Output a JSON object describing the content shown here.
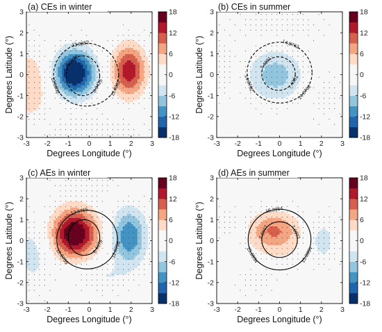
{
  "colormap": [
    "#08306b",
    "#2166ac",
    "#4393c3",
    "#92c5de",
    "#d1e5f0",
    "#f7f7f7",
    "#fddbc7",
    "#f4a582",
    "#d6604d",
    "#b2182b",
    "#67001f"
  ],
  "chart_data": [
    {
      "type": "heatmap",
      "title": "(a) CEs in winter",
      "xlabel": "Degrees Longitude (°)",
      "ylabel": "Degrees Latitude (°)",
      "xlim": [
        -3,
        3
      ],
      "ylim": [
        -3,
        3
      ],
      "xticks": [
        "-3",
        "-2",
        "-1",
        "0",
        "1",
        "2",
        "3"
      ],
      "yticks": [
        "3",
        "2",
        "1",
        "0",
        "-1",
        "-2",
        "-3"
      ],
      "colorbar": {
        "min": -18,
        "max": 18,
        "ticks": [
          "18",
          "12",
          "6",
          "0",
          "-6",
          "-12",
          "-18"
        ]
      },
      "field": {
        "blobs": [
          {
            "x": -0.7,
            "y": 0.1,
            "amp": -20,
            "sx": 0.65,
            "sy": 0.75
          },
          {
            "x": 1.9,
            "y": 0.2,
            "amp": 14,
            "sx": 0.55,
            "sy": 0.85
          },
          {
            "x": -2.8,
            "y": -0.5,
            "amp": 5,
            "sx": 0.7,
            "sy": 1.3
          },
          {
            "x": 0.0,
            "y": -2.8,
            "amp": -3,
            "sx": 1.8,
            "sy": 0.5
          }
        ]
      },
      "contours": [
        {
          "value": "13.8852",
          "label_angles": [
            100,
            200,
            335
          ],
          "cx": -0.15,
          "cy": 0.0,
          "rx": 1.55,
          "ry": 1.5,
          "style": "dashed"
        },
        {
          "value": "6.9426",
          "label_angles": [
            130,
            330
          ],
          "cx": -0.3,
          "cy": -0.05,
          "rx": 0.8,
          "ry": 0.95,
          "style": "dashed"
        }
      ]
    },
    {
      "type": "heatmap",
      "title": "(b) CEs in summer",
      "xlabel": "Degrees Longitude (°)",
      "ylabel": "Degrees Latitude (°)",
      "xlim": [
        -3,
        3
      ],
      "ylim": [
        -3,
        3
      ],
      "xticks": [
        "-3",
        "-2",
        "-1",
        "0",
        "1",
        "2",
        "3"
      ],
      "yticks": [
        "3",
        "2",
        "1",
        "0",
        "-1",
        "-2",
        "-3"
      ],
      "colorbar": {
        "min": -18,
        "max": 18,
        "ticks": [
          "18",
          "12",
          "6",
          "0",
          "-6",
          "-12",
          "-18"
        ]
      },
      "field": {
        "blobs": [
          {
            "x": -0.2,
            "y": 0.0,
            "amp": -7.5,
            "sx": 0.9,
            "sy": 0.85
          },
          {
            "x": 0.0,
            "y": 2.4,
            "amp": 2.5,
            "sx": 1.4,
            "sy": 0.6
          },
          {
            "x": -2.7,
            "y": 0.3,
            "amp": 2.2,
            "sx": 0.5,
            "sy": 1.0
          },
          {
            "x": 2.2,
            "y": -1.0,
            "amp": 2.0,
            "sx": 0.6,
            "sy": 0.9
          }
        ]
      },
      "contours": [
        {
          "value": "14.8762",
          "label_angles": [
            70,
            200,
            320
          ],
          "cx": 0.0,
          "cy": 0.1,
          "rx": 1.55,
          "ry": 1.45,
          "style": "dashed"
        },
        {
          "value": "7.4381",
          "label_angles": [
            140,
            330
          ],
          "cx": -0.05,
          "cy": 0.05,
          "rx": 0.8,
          "ry": 0.8,
          "style": "dashed"
        }
      ]
    },
    {
      "type": "heatmap",
      "title": "(c) AEs in winter",
      "xlabel": "Degrees Longitude (°)",
      "ylabel": "Degrees Latitude (°)",
      "xlim": [
        -3,
        3
      ],
      "ylim": [
        -3,
        3
      ],
      "xticks": [
        "-3",
        "-2",
        "-1",
        "0",
        "1",
        "2",
        "3"
      ],
      "yticks": [
        "3",
        "2",
        "1",
        "0",
        "-1",
        "-2",
        "-3"
      ],
      "colorbar": {
        "min": -18,
        "max": 18,
        "ticks": [
          "18",
          "12",
          "6",
          "0",
          "-6",
          "-12",
          "-18"
        ]
      },
      "field": {
        "blobs": [
          {
            "x": -0.7,
            "y": 0.35,
            "amp": 19,
            "sx": 0.75,
            "sy": 0.8
          },
          {
            "x": 1.9,
            "y": 0.2,
            "amp": -12,
            "sx": 0.55,
            "sy": 0.9
          },
          {
            "x": -2.7,
            "y": -0.6,
            "amp": -4,
            "sx": 0.6,
            "sy": 1.2
          },
          {
            "x": 0.6,
            "y": -1.7,
            "amp": -3,
            "sx": 0.9,
            "sy": 0.5
          },
          {
            "x": 0.0,
            "y": 2.7,
            "amp": 2,
            "sx": 1.2,
            "sy": 0.4
          }
        ]
      },
      "contours": [
        {
          "value": "12.8755",
          "label_angles": [
            105,
            215,
            340
          ],
          "cx": -0.1,
          "cy": 0.05,
          "rx": 1.45,
          "ry": 1.4,
          "style": "solid"
        },
        {
          "value": "6.4378",
          "label_angles": [
            150,
            330
          ],
          "cx": -0.25,
          "cy": 0.15,
          "rx": 0.75,
          "ry": 0.85,
          "style": "solid"
        }
      ]
    },
    {
      "type": "heatmap",
      "title": "(d) AEs in summer",
      "xlabel": "Degrees Longitude (°)",
      "ylabel": "Degrees Latitude (°)",
      "xlim": [
        -3,
        3
      ],
      "ylim": [
        -3,
        3
      ],
      "xticks": [
        "-3",
        "-2",
        "-1",
        "0",
        "1",
        "2",
        "3"
      ],
      "yticks": [
        "3",
        "2",
        "1",
        "0",
        "-1",
        "-2",
        "-3"
      ],
      "colorbar": {
        "min": -18,
        "max": 18,
        "ticks": [
          "18",
          "12",
          "6",
          "0",
          "-6",
          "-12",
          "-18"
        ]
      },
      "field": {
        "blobs": [
          {
            "x": -0.3,
            "y": 0.55,
            "amp": 8,
            "sx": 0.85,
            "sy": 0.6
          },
          {
            "x": 0.0,
            "y": -0.3,
            "amp": 2.5,
            "sx": 1.1,
            "sy": 0.9
          },
          {
            "x": 2.0,
            "y": 0.0,
            "amp": -4.5,
            "sx": 0.55,
            "sy": 0.8
          },
          {
            "x": -2.4,
            "y": 0.8,
            "amp": -3.0,
            "sx": 0.5,
            "sy": 0.5
          },
          {
            "x": -1.0,
            "y": -1.8,
            "amp": -2.5,
            "sx": 0.7,
            "sy": 0.5
          }
        ]
      },
      "contours": [
        {
          "value": "15.3954",
          "label_angles": [
            100,
            210,
            330
          ],
          "cx": 0.0,
          "cy": 0.05,
          "rx": 1.5,
          "ry": 1.45,
          "style": "solid"
        },
        {
          "value": "7.6977",
          "label_angles": [
            155,
            25
          ],
          "cx": 0.0,
          "cy": 0.05,
          "rx": 0.85,
          "ry": 0.85,
          "style": "solid"
        }
      ]
    }
  ]
}
